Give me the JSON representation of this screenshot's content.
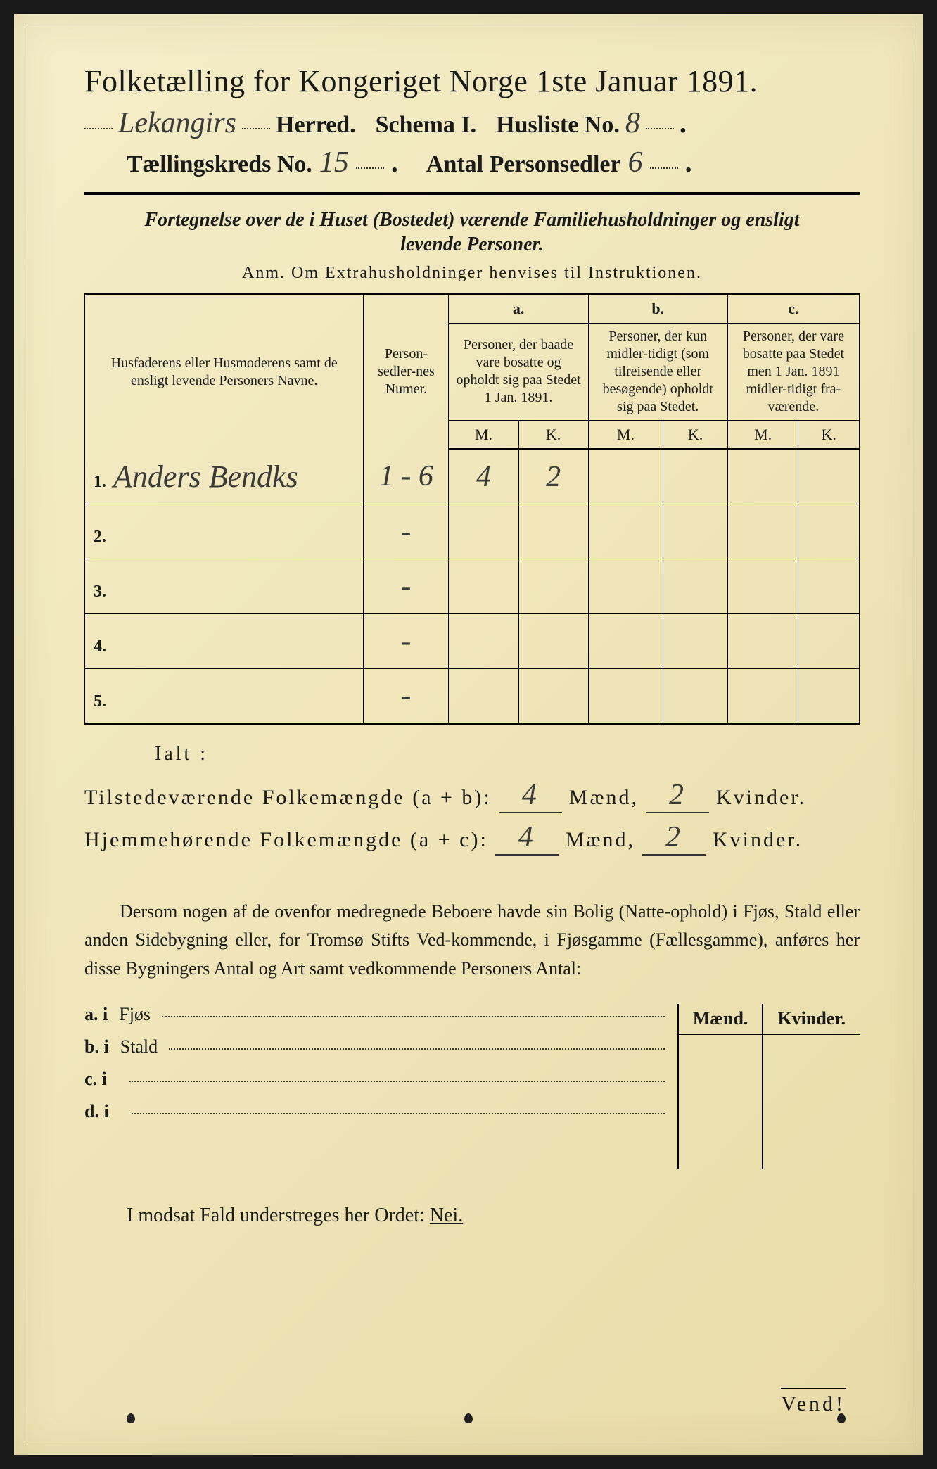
{
  "title": "Folketælling for Kongeriget Norge 1ste Januar 1891.",
  "header": {
    "herred_value": "Lekangirs",
    "herred_label": "Herred.",
    "schema_label": "Schema I.",
    "husliste_label": "Husliste No.",
    "husliste_value": "8",
    "kreds_label": "Tællingskreds No.",
    "kreds_value": "15",
    "antal_label": "Antal Personsedler",
    "antal_value": "6"
  },
  "subhead_line1": "Fortegnelse over de i Huset (Bostedet) værende Familiehusholdninger og ensligt",
  "subhead_line2": "levende Personer.",
  "anm": "Anm.  Om Extrahusholdninger henvises til Instruktionen.",
  "columns": {
    "name": "Husfaderens eller Husmoderens samt de ensligt levende Personers Navne.",
    "numer": "Person-sedler-nes Numer.",
    "a_label": "a.",
    "a_text": "Personer, der baade vare bosatte og opholdt sig paa Stedet 1 Jan. 1891.",
    "b_label": "b.",
    "b_text": "Personer, der kun midler-tidigt (som tilreisende eller besøgende) opholdt sig paa Stedet.",
    "c_label": "c.",
    "c_text": "Personer, der vare bosatte paa Stedet men 1 Jan. 1891 midler-tidigt fra-værende.",
    "m": "M.",
    "k": "K."
  },
  "rows": [
    {
      "num": "1.",
      "name": "Anders Bendks",
      "numer": "1 - 6",
      "a_m": "4",
      "a_k": "2",
      "b_m": "",
      "b_k": "",
      "c_m": "",
      "c_k": ""
    },
    {
      "num": "2.",
      "name": "",
      "numer": "-",
      "a_m": "",
      "a_k": "",
      "b_m": "",
      "b_k": "",
      "c_m": "",
      "c_k": ""
    },
    {
      "num": "3.",
      "name": "",
      "numer": "-",
      "a_m": "",
      "a_k": "",
      "b_m": "",
      "b_k": "",
      "c_m": "",
      "c_k": ""
    },
    {
      "num": "4.",
      "name": "",
      "numer": "-",
      "a_m": "",
      "a_k": "",
      "b_m": "",
      "b_k": "",
      "c_m": "",
      "c_k": ""
    },
    {
      "num": "5.",
      "name": "",
      "numer": "-",
      "a_m": "",
      "a_k": "",
      "b_m": "",
      "b_k": "",
      "c_m": "",
      "c_k": ""
    }
  ],
  "ialt": "Ialt :",
  "totals": {
    "tilstede_label": "Tilstedeværende Folkemængde (a + b):",
    "hjemme_label": "Hjemmehørende Folkemængde (a + c):",
    "maend": "Mænd,",
    "kvinder": "Kvinder.",
    "tilstede_m": "4",
    "tilstede_k": "2",
    "hjemme_m": "4",
    "hjemme_k": "2"
  },
  "paragraph": "Dersom nogen af de ovenfor medregnede Beboere havde sin Bolig (Natte-ophold) i Fjøs, Stald eller anden Sidebygning eller, for Tromsø Stifts Ved-kommende, i Fjøsgamme (Fællesgamme), anføres her disse Bygningers Antal og Art samt vedkommende Personers Antal:",
  "outbuild": {
    "maend": "Mænd.",
    "kvinder": "Kvinder.",
    "rows": [
      {
        "lbl": "a.  i",
        "txt": "Fjøs"
      },
      {
        "lbl": "b.  i",
        "txt": "Stald"
      },
      {
        "lbl": "c.  i",
        "txt": ""
      },
      {
        "lbl": "d.  i",
        "txt": ""
      }
    ]
  },
  "nei_line": "I modsat Fald understreges her Ordet:",
  "nei_word": "Nei.",
  "vend": "Vend!"
}
